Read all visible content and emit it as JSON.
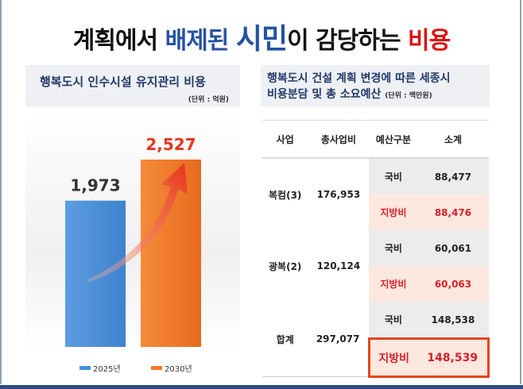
{
  "title": {
    "part1": "계획에서",
    "part2": "배제된",
    "part3": "시민",
    "part4": "이 감당하는",
    "part5": "비용"
  },
  "left_panel": {
    "heading": "행복도시 인수시설 유지관리 비용",
    "unit": "(단위 : 억원)"
  },
  "right_panel": {
    "heading_line1": "행복도시 건설 계획 변경에 따른 세종시",
    "heading_line2": "비용분담 및 총 소요예산",
    "unit": "(단위 : 백만원)"
  },
  "colors": {
    "blue": "#4a8fd8",
    "orange": "#f07b2a",
    "red": "#e01010",
    "navy": "#2552a3"
  },
  "chart_data": {
    "type": "bar",
    "categories": [
      "2025년",
      "2030년"
    ],
    "values": [
      1973,
      2527
    ],
    "value_labels": [
      "1,973",
      "2,527"
    ],
    "legend": [
      "2025년",
      "2030년"
    ],
    "legend_position": "bottom",
    "annotation": "upward-arrow"
  },
  "table": {
    "headers": [
      "사업",
      "총사업비",
      "예산구분",
      "소계"
    ],
    "groups": [
      {
        "project": "복컴(3)",
        "total": "176,953",
        "rows": [
          {
            "type": "국비",
            "value": "88,477"
          },
          {
            "type": "지방비",
            "value": "88,476"
          }
        ]
      },
      {
        "project": "광복(2)",
        "total": "120,124",
        "rows": [
          {
            "type": "국비",
            "value": "60,061"
          },
          {
            "type": "지방비",
            "value": "60,063"
          }
        ]
      },
      {
        "project": "합계",
        "total": "297,077",
        "rows": [
          {
            "type": "국비",
            "value": "148,538"
          },
          {
            "type": "지방비",
            "value": "148,539"
          }
        ]
      }
    ]
  }
}
